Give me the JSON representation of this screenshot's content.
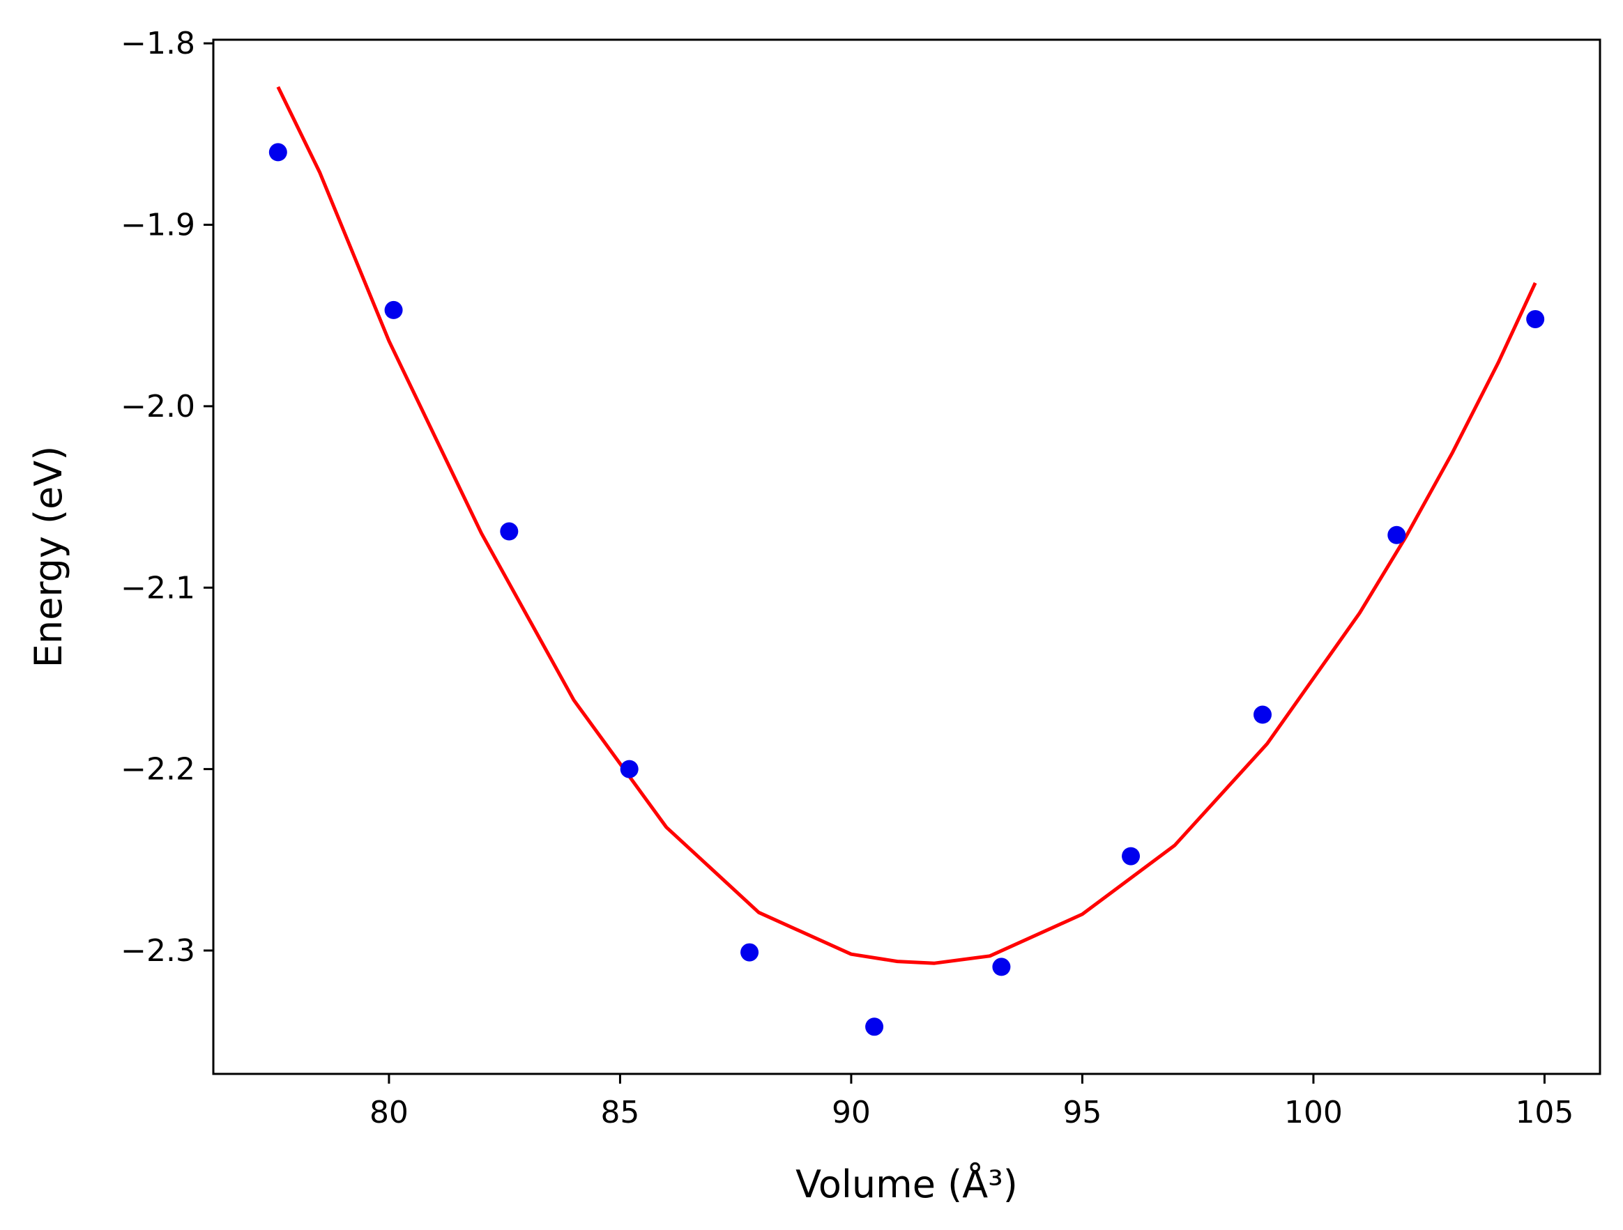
{
  "chart_data": {
    "type": "scatter",
    "xlabel": "Volume (Å³)",
    "ylabel": "Energy (eV)",
    "xlim": [
      76.2,
      106.2
    ],
    "ylim": [
      -2.368,
      -1.798
    ],
    "grid": false,
    "x_ticks": [
      80,
      85,
      90,
      95,
      100,
      105
    ],
    "x_tick_labels": [
      "80",
      "85",
      "90",
      "95",
      "100",
      "105"
    ],
    "y_ticks": [
      -1.8,
      -1.9,
      -2.0,
      -2.1,
      -2.2,
      -2.3
    ],
    "y_tick_labels": [
      "−1.8",
      "−1.9",
      "−2.0",
      "−2.1",
      "−2.2",
      "−2.3"
    ],
    "series": [
      {
        "kind": "scatter",
        "color": "#0000ee",
        "x": [
          77.6,
          80.1,
          82.6,
          85.2,
          87.8,
          90.5,
          93.25,
          96.05,
          98.9,
          101.8,
          104.8
        ],
        "y": [
          -1.86,
          -1.947,
          -2.069,
          -2.2,
          -2.301,
          -2.342,
          -2.309,
          -2.248,
          -2.17,
          -2.071,
          -1.952
        ]
      },
      {
        "kind": "line",
        "color": "#ff0000",
        "x": [
          77.6,
          78.5,
          80.0,
          82.0,
          84.0,
          86.0,
          88.0,
          90.0,
          91.0,
          91.8,
          93.0,
          95.0,
          97.0,
          99.0,
          101.0,
          102.0,
          103.0,
          104.0,
          104.8
        ],
        "y": [
          -1.824,
          -1.871,
          -1.964,
          -2.07,
          -2.162,
          -2.232,
          -2.279,
          -2.302,
          -2.306,
          -2.307,
          -2.303,
          -2.28,
          -2.242,
          -2.186,
          -2.114,
          -2.072,
          -2.026,
          -1.976,
          -1.932
        ]
      }
    ]
  }
}
